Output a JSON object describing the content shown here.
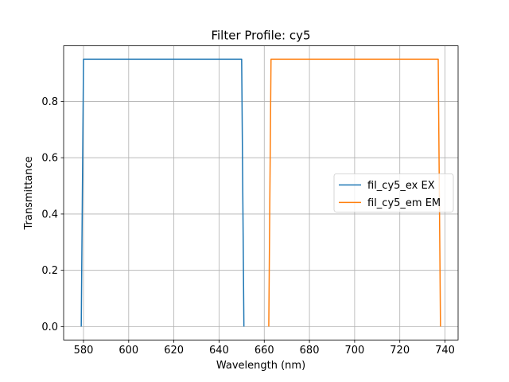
{
  "chart_data": {
    "type": "line",
    "title": "Filter Profile: cy5",
    "xlabel": "Wavelength (nm)",
    "ylabel": "Transmittance",
    "xlim": [
      571.2,
      745.8
    ],
    "ylim": [
      -0.0475,
      0.9975
    ],
    "x_ticks": [
      580,
      600,
      620,
      640,
      660,
      680,
      700,
      720,
      740
    ],
    "y_ticks": [
      0.0,
      0.2,
      0.4,
      0.6,
      0.8
    ],
    "grid": true,
    "legend_position": "center-right",
    "series": [
      {
        "name": "fil_cy5_ex EX",
        "color": "#1f77b4",
        "x": [
          579,
          580,
          650,
          651
        ],
        "y": [
          0.0,
          0.95,
          0.95,
          0.0
        ]
      },
      {
        "name": "fil_cy5_em EM",
        "color": "#ff7f0e",
        "x": [
          662,
          663,
          737,
          738
        ],
        "y": [
          0.0,
          0.95,
          0.95,
          0.0
        ]
      }
    ]
  }
}
